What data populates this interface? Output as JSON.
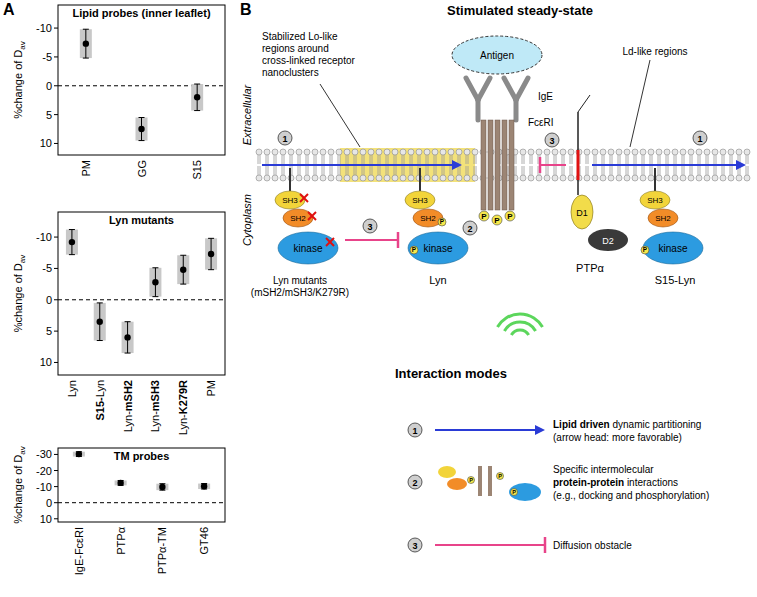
{
  "panel_labels": [
    "A",
    "B"
  ],
  "chart_data": [
    {
      "type": "dot",
      "title": "Lipid probes (inner leaflet)",
      "ylabel": "%change of D",
      "ylabel_sub": "av",
      "categories": [
        "PM",
        "GG",
        "S15"
      ],
      "values": [
        -7.3,
        7.5,
        2.0
      ],
      "errors": [
        2.5,
        2.0,
        2.3
      ],
      "color": "#000000",
      "ylim": [
        12,
        -14
      ],
      "yticks": [
        -10,
        -5,
        0,
        5,
        10
      ],
      "baseline": 0,
      "marker": "circle"
    },
    {
      "type": "dot",
      "title": "Lyn mutants",
      "ylabel": "%change of D",
      "ylabel_sub": "av",
      "categories": [
        "Lyn",
        "S15-Lyn",
        "Lyn-mSH2",
        "Lyn-mSH3",
        "Lyn-K279R",
        "PM"
      ],
      "values": [
        -9.2,
        3.5,
        6.0,
        -2.8,
        -4.8,
        -7.3
      ],
      "errors": [
        2.0,
        3.0,
        2.5,
        2.3,
        2.3,
        2.5
      ],
      "color": "#000000",
      "ylim": [
        12,
        -14
      ],
      "yticks": [
        -10,
        -5,
        0,
        5,
        10
      ],
      "baseline": 0,
      "marker": "circle"
    },
    {
      "type": "dot",
      "title": "TM probes",
      "ylabel": "%change of D",
      "ylabel_sub": "av",
      "categories": [
        "IgE-FcεRI",
        "PTPα",
        "PTPα-TM",
        "GT46"
      ],
      "values": [
        -30.2,
        -12.3,
        -9.8,
        -10.2
      ],
      "errors": [
        1.5,
        1.5,
        2.0,
        1.7
      ],
      "color": "#000000",
      "ylim": [
        12,
        -34
      ],
      "yticks": [
        -30,
        -20,
        -10,
        0,
        10
      ],
      "baseline": 0,
      "marker": "circle"
    }
  ],
  "diagram": {
    "title": "Stimulated steady-state",
    "regions": {
      "extracellular": "Extracellular",
      "cytoplasm": "Cytoplasm"
    },
    "lo_callout": [
      "Stabilized Lo-like",
      "regions around",
      "cross-linked receptor",
      "nanoclusters"
    ],
    "ld_callout": "Ld-like regions",
    "antigen": "Antigen",
    "ige": "IgE",
    "receptor": "FcεRI",
    "phosphatase": "PTPα",
    "phosphatase_domains": [
      "D1",
      "D2"
    ],
    "lyn_mutants": [
      "Lyn mutants",
      "(mSH2/mSH3/K279R)"
    ],
    "lyn": "Lyn",
    "s15_lyn": "S15-Lyn",
    "domains": {
      "sh3": "SH3",
      "sh2": "SH2",
      "kinase": "kinase",
      "phospho": "P"
    },
    "mode_numbers": [
      "1",
      "2",
      "3"
    ],
    "legend_title": "Interaction modes",
    "modes": [
      {
        "lines": [
          [
            {
              "strong": "Lipid driven"
            },
            " dynamic partitioning"
          ],
          [
            "(arrow head: more favorable)"
          ]
        ]
      },
      {
        "lines": [
          [
            "Specific intermolecular"
          ],
          [
            {
              "strong": "protein-protein"
            },
            " interactions"
          ],
          [
            "(e.g., docking and phosphorylation)"
          ]
        ]
      },
      {
        "lines": [
          [
            "Diffusion obstacle"
          ]
        ]
      }
    ]
  }
}
